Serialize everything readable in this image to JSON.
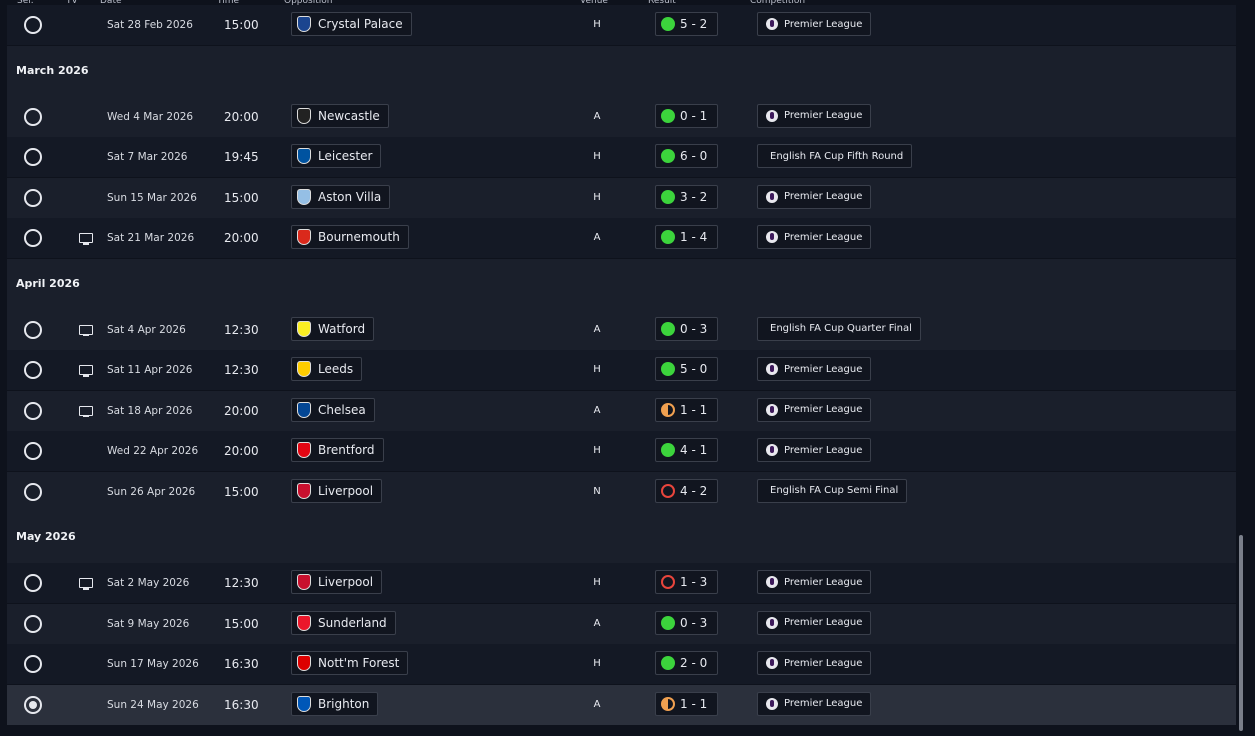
{
  "header": {
    "columns": [
      "Sel.",
      "TV",
      "Date",
      "Time",
      "Opposition",
      "Venue",
      "Result",
      "Competition"
    ]
  },
  "groups": [
    {
      "rows": [
        {
          "date": "Sat 28 Feb 2026",
          "time": "15:00",
          "opposition": "Crystal Palace",
          "venue": "H",
          "result": "5 - 2",
          "competition": "Premier League",
          "tv": false,
          "selected": false,
          "badge": "#1b458f",
          "result_icon": {
            "color": "#3cd43c",
            "fill": "full"
          },
          "competition_logo": true
        }
      ]
    },
    {
      "title": "March 2026",
      "rows": [
        {
          "date": "Wed 4 Mar 2026",
          "time": "20:00",
          "opposition": "Newcastle",
          "venue": "A",
          "result": "0 - 1",
          "competition": "Premier League",
          "tv": false,
          "selected": false,
          "badge": "#222222",
          "result_icon": {
            "color": "#3cd43c",
            "fill": "full"
          },
          "competition_logo": true
        },
        {
          "date": "Sat 7 Mar 2026",
          "time": "19:45",
          "opposition": "Leicester",
          "venue": "H",
          "result": "6 - 0",
          "competition": "English FA Cup Fifth Round",
          "tv": false,
          "selected": false,
          "badge": "#0053a0",
          "result_icon": {
            "color": "#3cd43c",
            "fill": "full"
          },
          "competition_logo": false
        },
        {
          "date": "Sun 15 Mar 2026",
          "time": "15:00",
          "opposition": "Aston Villa",
          "venue": "H",
          "result": "3 - 2",
          "competition": "Premier League",
          "tv": false,
          "selected": false,
          "badge": "#95bfe5",
          "result_icon": {
            "color": "#3cd43c",
            "fill": "full"
          },
          "competition_logo": true
        },
        {
          "date": "Sat 21 Mar 2026",
          "time": "20:00",
          "opposition": "Bournemouth",
          "venue": "A",
          "result": "1 - 4",
          "competition": "Premier League",
          "tv": true,
          "selected": false,
          "badge": "#da291c",
          "result_icon": {
            "color": "#3cd43c",
            "fill": "full"
          },
          "competition_logo": true
        }
      ]
    },
    {
      "title": "April 2026",
      "rows": [
        {
          "date": "Sat 4 Apr 2026",
          "time": "12:30",
          "opposition": "Watford",
          "venue": "A",
          "result": "0 - 3",
          "competition": "English FA Cup Quarter Final",
          "tv": true,
          "selected": false,
          "badge": "#fbee23",
          "result_icon": {
            "color": "#3cd43c",
            "fill": "full"
          },
          "competition_logo": false
        },
        {
          "date": "Sat 11 Apr 2026",
          "time": "12:30",
          "opposition": "Leeds",
          "venue": "H",
          "result": "5 - 0",
          "competition": "Premier League",
          "tv": true,
          "selected": false,
          "badge": "#ffcd00",
          "result_icon": {
            "color": "#3cd43c",
            "fill": "full"
          },
          "competition_logo": true
        },
        {
          "date": "Sat 18 Apr 2026",
          "time": "20:00",
          "opposition": "Chelsea",
          "venue": "A",
          "result": "1 - 1",
          "competition": "Premier League",
          "tv": true,
          "selected": false,
          "badge": "#034694",
          "result_icon": {
            "color": "#f0a050",
            "fill": "half"
          },
          "competition_logo": true
        },
        {
          "date": "Wed 22 Apr 2026",
          "time": "20:00",
          "opposition": "Brentford",
          "venue": "H",
          "result": "4 - 1",
          "competition": "Premier League",
          "tv": false,
          "selected": false,
          "badge": "#e30613",
          "result_icon": {
            "color": "#3cd43c",
            "fill": "full"
          },
          "competition_logo": true
        },
        {
          "date": "Sun 26 Apr 2026",
          "time": "15:00",
          "opposition": "Liverpool",
          "venue": "N",
          "result": "4 - 2",
          "competition": "English FA Cup Semi Final",
          "tv": false,
          "selected": false,
          "badge": "#c8102e",
          "result_icon": {
            "color": "#e8453c",
            "fill": "ring"
          },
          "competition_logo": false
        }
      ]
    },
    {
      "title": "May 2026",
      "rows": [
        {
          "date": "Sat 2 May 2026",
          "time": "12:30",
          "opposition": "Liverpool",
          "venue": "H",
          "result": "1 - 3",
          "competition": "Premier League",
          "tv": true,
          "selected": false,
          "badge": "#c8102e",
          "result_icon": {
            "color": "#e8453c",
            "fill": "ring"
          },
          "competition_logo": true
        },
        {
          "date": "Sat 9 May 2026",
          "time": "15:00",
          "opposition": "Sunderland",
          "venue": "A",
          "result": "0 - 3",
          "competition": "Premier League",
          "tv": false,
          "selected": false,
          "badge": "#eb172b",
          "result_icon": {
            "color": "#3cd43c",
            "fill": "full"
          },
          "competition_logo": true
        },
        {
          "date": "Sun 17 May 2026",
          "time": "16:30",
          "opposition": "Nott'm Forest",
          "venue": "H",
          "result": "2 - 0",
          "competition": "Premier League",
          "tv": false,
          "selected": false,
          "badge": "#dd0000",
          "result_icon": {
            "color": "#3cd43c",
            "fill": "full"
          },
          "competition_logo": true
        },
        {
          "date": "Sun 24 May 2026",
          "time": "16:30",
          "opposition": "Brighton",
          "venue": "A",
          "result": "1 - 1",
          "competition": "Premier League",
          "tv": false,
          "selected": true,
          "badge": "#0057b8",
          "result_icon": {
            "color": "#f0a050",
            "fill": "half"
          },
          "competition_logo": true
        }
      ]
    }
  ]
}
